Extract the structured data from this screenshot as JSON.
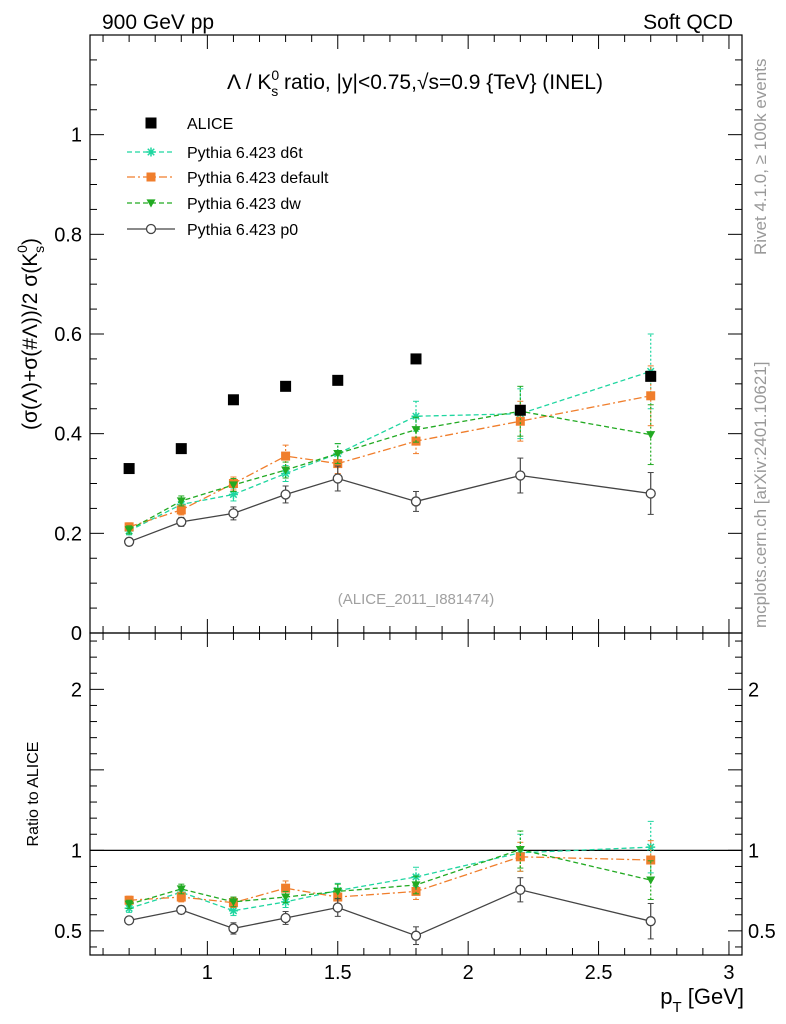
{
  "header": {
    "left": "900 GeV pp",
    "right": "Soft QCD"
  },
  "side_labels": {
    "rivet": "Rivet 4.1.0, ≥ 100k events",
    "mcplots": "mcplots.cern.ch [arXiv:2401.10621]"
  },
  "chart_data": [
    {
      "type": "scatter",
      "title": "Λ / K⁰s ratio, |y|<0.75, √s=0.9 {TeV} (INEL)",
      "title_parts": {
        "lead": "Λ / K",
        "sup": "0",
        "sub": "s",
        "rest_a": " ratio, |y|<0.75,√",
        "rest_b": "s=0.9 {TeV} (INEL)"
      },
      "ylabel": "(σ(Λ)+σ(#Λ))/2 σ(K⁰s)",
      "ylabel_parts": {
        "main": "(σ(Λ)+σ(#Λ))/2 σ(K",
        "sub": "s",
        "sup": "0",
        "close": ")"
      },
      "watermark": "(ALICE_2011_I881474)",
      "xlim": [
        0.55,
        3.05
      ],
      "ylim": [
        0,
        1.2
      ],
      "yticks": [
        0,
        0.2,
        0.4,
        0.6,
        0.8,
        1
      ],
      "ytick_labels": [
        "0",
        "0.2",
        "0.4",
        "0.6",
        "0.8",
        "1"
      ],
      "series": [
        {
          "name": "ALICE",
          "color": "#000000",
          "marker": "square",
          "line": "none",
          "x": [
            0.7,
            0.9,
            1.1,
            1.3,
            1.5,
            1.8,
            2.2,
            2.7
          ],
          "y": [
            0.33,
            0.37,
            0.468,
            0.495,
            0.507,
            0.55,
            0.447,
            0.515
          ],
          "err": [
            0,
            0,
            0,
            0,
            0,
            0,
            0,
            0
          ]
        },
        {
          "name": "Pythia 6.423 d6t",
          "color": "#1fd6a0",
          "marker": "star",
          "line": "dashed",
          "x": [
            0.7,
            0.9,
            1.1,
            1.3,
            1.5,
            1.8,
            2.2,
            2.7
          ],
          "y": [
            0.205,
            0.258,
            0.278,
            0.32,
            0.36,
            0.435,
            0.44,
            0.525
          ],
          "err": [
            0.008,
            0.01,
            0.013,
            0.016,
            0.02,
            0.03,
            0.05,
            0.075
          ]
        },
        {
          "name": "Pythia 6.423 default",
          "color": "#f07e2c",
          "marker": "square",
          "line": "dashdot",
          "x": [
            0.7,
            0.9,
            1.1,
            1.3,
            1.5,
            1.8,
            2.2,
            2.7
          ],
          "y": [
            0.213,
            0.247,
            0.3,
            0.355,
            0.34,
            0.385,
            0.425,
            0.476
          ],
          "err": [
            0.008,
            0.01,
            0.013,
            0.022,
            0.02,
            0.025,
            0.04,
            0.06
          ]
        },
        {
          "name": "Pythia 6.423 dw",
          "color": "#22aa22",
          "marker": "triangle-down",
          "line": "dashed",
          "x": [
            0.7,
            0.9,
            1.1,
            1.3,
            1.5,
            1.8,
            2.2,
            2.7
          ],
          "y": [
            0.207,
            0.265,
            0.297,
            0.327,
            0.36,
            0.408,
            0.445,
            0.398
          ],
          "err": [
            0.008,
            0.01,
            0.013,
            0.016,
            0.02,
            0.025,
            0.05,
            0.06
          ]
        },
        {
          "name": "Pythia 6.423 p0",
          "color": "#444444",
          "marker": "open-circle",
          "line": "solid",
          "x": [
            0.7,
            0.9,
            1.1,
            1.3,
            1.5,
            1.8,
            2.2,
            2.7
          ],
          "y": [
            0.183,
            0.223,
            0.24,
            0.278,
            0.31,
            0.264,
            0.316,
            0.28
          ],
          "err": [
            0.006,
            0.009,
            0.013,
            0.017,
            0.025,
            0.02,
            0.035,
            0.042
          ]
        }
      ]
    },
    {
      "type": "scatter",
      "ylabel": "Ratio to ALICE",
      "xlabel": "p_T [GeV]",
      "xlabel_parts": {
        "main": "p",
        "sub": "T",
        "rest": " [GeV]"
      },
      "xlim": [
        0.55,
        3.05
      ],
      "ylim": [
        0.35,
        2.35
      ],
      "xticks": [
        1,
        1.5,
        2,
        2.5,
        3
      ],
      "xtick_labels": [
        "1",
        "1.5",
        "2",
        "2.5",
        "3"
      ],
      "yticks": [
        0.5,
        1,
        2
      ],
      "ytick_labels": [
        "0.5",
        "1",
        "2"
      ],
      "reference_line": 1,
      "series": [
        {
          "name": "Pythia 6.423 d6t",
          "color": "#1fd6a0",
          "marker": "star",
          "line": "dashed",
          "x": [
            0.7,
            0.9,
            1.1,
            1.3,
            1.5,
            1.8,
            2.2,
            2.7
          ],
          "y": [
            0.64,
            0.74,
            0.625,
            0.68,
            0.75,
            0.835,
            0.985,
            1.02
          ],
          "err": [
            0.025,
            0.03,
            0.03,
            0.035,
            0.045,
            0.06,
            0.115,
            0.16
          ]
        },
        {
          "name": "Pythia 6.423 default",
          "color": "#f07e2c",
          "marker": "square",
          "line": "dashdot",
          "x": [
            0.7,
            0.9,
            1.1,
            1.3,
            1.5,
            1.8,
            2.2,
            2.7
          ],
          "y": [
            0.69,
            0.71,
            0.675,
            0.765,
            0.71,
            0.745,
            0.96,
            0.94
          ],
          "err": [
            0.025,
            0.03,
            0.03,
            0.045,
            0.04,
            0.05,
            0.09,
            0.12
          ]
        },
        {
          "name": "Pythia 6.423 dw",
          "color": "#22aa22",
          "marker": "triangle-down",
          "line": "dashed",
          "x": [
            0.7,
            0.9,
            1.1,
            1.3,
            1.5,
            1.8,
            2.2,
            2.7
          ],
          "y": [
            0.665,
            0.76,
            0.68,
            0.71,
            0.745,
            0.785,
            1.005,
            0.815
          ],
          "err": [
            0.025,
            0.03,
            0.03,
            0.035,
            0.045,
            0.055,
            0.115,
            0.12
          ]
        },
        {
          "name": "Pythia 6.423 p0",
          "color": "#444444",
          "marker": "open-circle",
          "line": "solid",
          "x": [
            0.7,
            0.9,
            1.1,
            1.3,
            1.5,
            1.8,
            2.2,
            2.7
          ],
          "y": [
            0.565,
            0.63,
            0.515,
            0.58,
            0.645,
            0.47,
            0.755,
            0.56
          ],
          "err": [
            0.02,
            0.025,
            0.035,
            0.04,
            0.055,
            0.055,
            0.075,
            0.11
          ]
        }
      ]
    }
  ]
}
